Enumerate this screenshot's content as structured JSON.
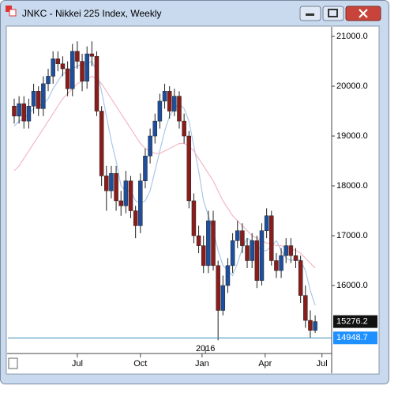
{
  "window_title": "JNKC - Nikkei 225 Index, Weekly",
  "chart_data": {
    "type": "candlestick",
    "categories": [
      null,
      null,
      null,
      null,
      null,
      null,
      null,
      null,
      null,
      null,
      null,
      null,
      null,
      null,
      null,
      null,
      null,
      null,
      null,
      null,
      null,
      null,
      null,
      null,
      null,
      null,
      null,
      null,
      null,
      null,
      null,
      null,
      null,
      null,
      null,
      null,
      null,
      null,
      null,
      null,
      null,
      null,
      null,
      null,
      null,
      null,
      null,
      null,
      null,
      null,
      null,
      null,
      null,
      null,
      null,
      null,
      null,
      null,
      null,
      null,
      null,
      null,
      null
    ],
    "open": [
      19600,
      19400,
      19650,
      19300,
      19600,
      19900,
      19550,
      20050,
      20200,
      20550,
      20450,
      20350,
      19950,
      20700,
      20500,
      20100,
      20650,
      20600,
      19500,
      18200,
      17900,
      18250,
      17700,
      17600,
      18100,
      17500,
      17200,
      18100,
      18600,
      19000,
      19300,
      19700,
      19900,
      19500,
      19800,
      19300,
      19000,
      17700,
      17000,
      16800,
      16400,
      17300,
      16400,
      15500,
      16000,
      16400,
      16900,
      17100,
      16800,
      16500,
      16900,
      16100,
      17100,
      17400,
      16500,
      16300,
      16600,
      16800,
      16600,
      16500,
      15800,
      15300,
      15100
    ],
    "high": [
      19750,
      19800,
      19800,
      19750,
      20050,
      20000,
      20200,
      20350,
      20700,
      20700,
      20600,
      20500,
      20850,
      20900,
      20650,
      20800,
      20900,
      20700,
      19600,
      18400,
      18400,
      18400,
      17900,
      18300,
      18200,
      17600,
      18250,
      18750,
      19150,
      19450,
      19850,
      20050,
      20000,
      19950,
      19900,
      19450,
      19100,
      17850,
      17200,
      17000,
      17500,
      17500,
      16500,
      16200,
      16550,
      17050,
      17300,
      17250,
      16950,
      17050,
      17000,
      17250,
      17550,
      17500,
      16650,
      16750,
      16950,
      16950,
      16750,
      16600,
      16000,
      15500,
      15400
    ],
    "low": [
      19250,
      19250,
      19150,
      19150,
      19450,
      19400,
      19400,
      19900,
      20050,
      20300,
      20200,
      19800,
      19800,
      20350,
      19900,
      19950,
      20400,
      19400,
      18000,
      17500,
      17750,
      17500,
      17400,
      17450,
      17350,
      16950,
      17050,
      17950,
      18450,
      18850,
      19150,
      19550,
      19350,
      19400,
      19150,
      18850,
      17550,
      16850,
      16650,
      16250,
      16250,
      16300,
      14900,
      15400,
      15850,
      16250,
      16750,
      16650,
      16350,
      16350,
      15950,
      16000,
      16950,
      16400,
      16150,
      16150,
      16450,
      16450,
      16350,
      15650,
      15150,
      14950,
      15050
    ],
    "close": [
      19400,
      19650,
      19300,
      19600,
      19900,
      19550,
      20050,
      20200,
      20550,
      20450,
      20350,
      19950,
      20700,
      20500,
      20100,
      20650,
      20600,
      19500,
      18200,
      17900,
      18250,
      17700,
      17600,
      18100,
      17500,
      17200,
      18100,
      18600,
      19000,
      19300,
      19700,
      19900,
      19500,
      19800,
      19300,
      19000,
      17700,
      17000,
      16800,
      16400,
      17300,
      16400,
      15500,
      16000,
      16400,
      16900,
      17100,
      16800,
      16500,
      16900,
      16100,
      17100,
      17400,
      16500,
      16300,
      16600,
      16800,
      16600,
      16500,
      15800,
      15300,
      15100,
      15276.2
    ],
    "up_color": "#1d4f9e",
    "down_color": "#8a1c1c",
    "lines": [
      {
        "color": "#a9c8e8",
        "values": [
          19200,
          19300,
          19350,
          19450,
          19550,
          19600,
          19650,
          19750,
          19950,
          20100,
          20250,
          20300,
          20350,
          20400,
          20450,
          20450,
          20500,
          20300,
          19900,
          19400,
          18900,
          18500,
          18000,
          17900,
          17900,
          17700,
          17650,
          17700,
          17900,
          18300,
          18700,
          19100,
          19400,
          19550,
          19650,
          19550,
          19300,
          18800,
          18300,
          17700,
          17400,
          17100,
          16700,
          16400,
          16300,
          16200,
          16450,
          16750,
          16950,
          16900,
          16800,
          16700,
          16700,
          16800,
          16900,
          16700,
          16550,
          16500,
          16550,
          16500,
          16300,
          15900,
          15600
        ]
      },
      {
        "color": "#f2b8c8",
        "values": [
          18300,
          18400,
          18550,
          18700,
          18850,
          19000,
          19150,
          19300,
          19450,
          19600,
          19750,
          19850,
          19950,
          20050,
          20100,
          20150,
          20200,
          20150,
          20050,
          19900,
          19750,
          19600,
          19450,
          19300,
          19150,
          19000,
          18850,
          18750,
          18700,
          18650,
          18650,
          18700,
          18750,
          18800,
          18850,
          18850,
          18800,
          18700,
          18550,
          18400,
          18250,
          18100,
          17900,
          17700,
          17550,
          17400,
          17300,
          17200,
          17100,
          17000,
          16950,
          16900,
          16850,
          16850,
          16800,
          16800,
          16750,
          16750,
          16700,
          16650,
          16550,
          16450,
          16350
        ]
      }
    ],
    "last_price": 15276.2,
    "reference_line": 14948.7,
    "ylim": [
      14667,
      21175
    ],
    "yticks": [
      {
        "value": 16000,
        "label": "16000.0"
      },
      {
        "value": 17000,
        "label": "17000.0"
      },
      {
        "value": 18000,
        "label": "18000.0"
      },
      {
        "value": 19000,
        "label": "19000.0"
      },
      {
        "value": 20000,
        "label": "20000.0"
      },
      {
        "value": 21000,
        "label": "21000.0"
      }
    ],
    "xlim": [
      -1.3,
      65.4
    ],
    "xticks": [
      {
        "value": 13.0,
        "label": "Jul"
      },
      {
        "value": 26.0,
        "label": "Oct"
      },
      {
        "value": 38.7,
        "label": "Jan"
      },
      {
        "value": 51.7,
        "label": "Apr"
      },
      {
        "value": 63.4,
        "label": "Jul"
      }
    ],
    "year_ticks": [
      {
        "value": 39.4,
        "label": "2016"
      }
    ]
  }
}
